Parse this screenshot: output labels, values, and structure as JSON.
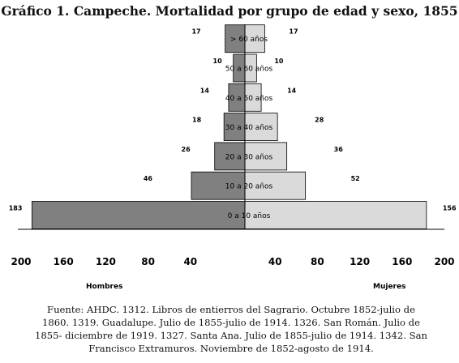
{
  "title": "Gráfico 1. Campeche. Mortalidad por grupo de edad y sexo, 1855",
  "source": "Fuente: AHDC. 1312. Libros de entierros del Sagrario. Octubre 1852-julio de 1860. 1319. Guadalupe. Julio de 1855-julio de 1914. 1326. San Román. Julio de 1855- diciembre de 1919. 1327. Santa Ana. Julio de 1855-julio de 1914. 1342. San Francisco Extramuros. Noviembre de 1852-agosto de 1914.",
  "colors": {
    "hombres": "#808080",
    "mujeres": "#dadada",
    "stroke": "#000000"
  },
  "chart_data": {
    "type": "bar",
    "subtype": "population-pyramid",
    "categories": [
      "0 a 10 años",
      "10 a 20 años",
      "20 a 30 años",
      "30 a 40 años",
      "40 a 50 años",
      "50 a 60 años",
      "> 60 años"
    ],
    "series": [
      {
        "name": "Hombres",
        "side": "left",
        "values": [
          183,
          46,
          26,
          18,
          14,
          10,
          17
        ]
      },
      {
        "name": "Mujeres",
        "side": "right",
        "values": [
          156,
          52,
          36,
          28,
          14,
          10,
          17
        ]
      }
    ],
    "x_ticks": [
      "200",
      "160",
      "120",
      "80",
      "40",
      "",
      "40",
      "80",
      "120",
      "160",
      "200"
    ],
    "xlim": [
      -200,
      200
    ],
    "left_label": "Hombres",
    "right_label": "Mujeres",
    "grid": false
  }
}
